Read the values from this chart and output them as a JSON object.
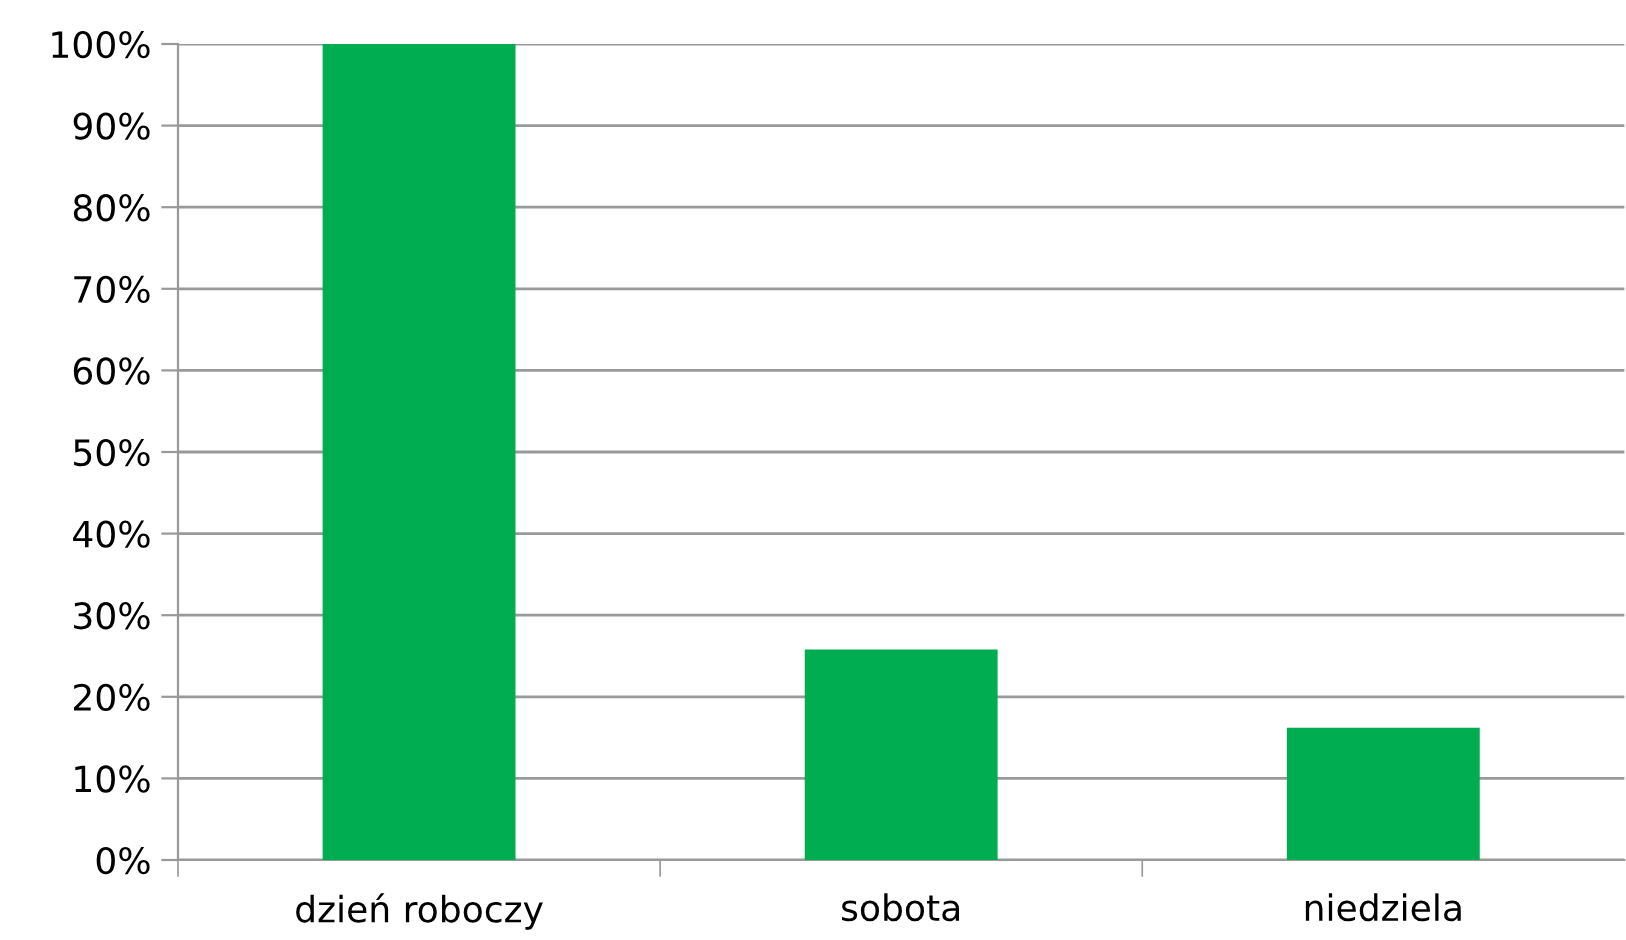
{
  "chart_data": {
    "type": "bar",
    "categories": [
      "dzień roboczy",
      "sobota",
      "niedziela"
    ],
    "values": [
      100,
      25.8,
      16.2
    ],
    "color": "#00ad50",
    "ylim": [
      0,
      100
    ],
    "yticks": [
      {
        "value": 0,
        "label": "0%"
      },
      {
        "value": 10,
        "label": "10%"
      },
      {
        "value": 20,
        "label": "20%"
      },
      {
        "value": 30,
        "label": "30%"
      },
      {
        "value": 40,
        "label": "40%"
      },
      {
        "value": 50,
        "label": "50%"
      },
      {
        "value": 60,
        "label": "60%"
      },
      {
        "value": 70,
        "label": "70%"
      },
      {
        "value": 80,
        "label": "80%"
      },
      {
        "value": 90,
        "label": "90%"
      },
      {
        "value": 100,
        "label": "100%"
      }
    ],
    "grid": "y",
    "legend": false
  }
}
